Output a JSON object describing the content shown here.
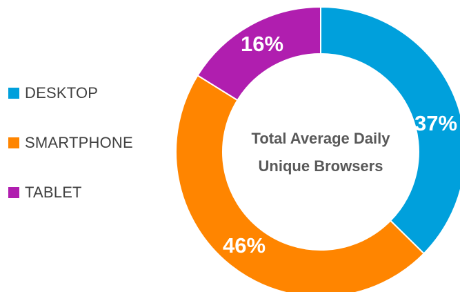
{
  "chart_data": {
    "type": "pie",
    "subtype": "donut",
    "title": "",
    "center_text": [
      "Total Average Daily",
      "Unique Browsers"
    ],
    "legend_position": "left",
    "slices": [
      {
        "label": "DESKTOP",
        "value": 37,
        "display": "37%",
        "color": "#00A0DC"
      },
      {
        "label": "SMARTPHONE",
        "value": 46,
        "display": "46%",
        "color": "#FF8500"
      },
      {
        "label": "TABLET",
        "value": 16,
        "display": "16%",
        "color": "#B01EAF"
      }
    ]
  }
}
